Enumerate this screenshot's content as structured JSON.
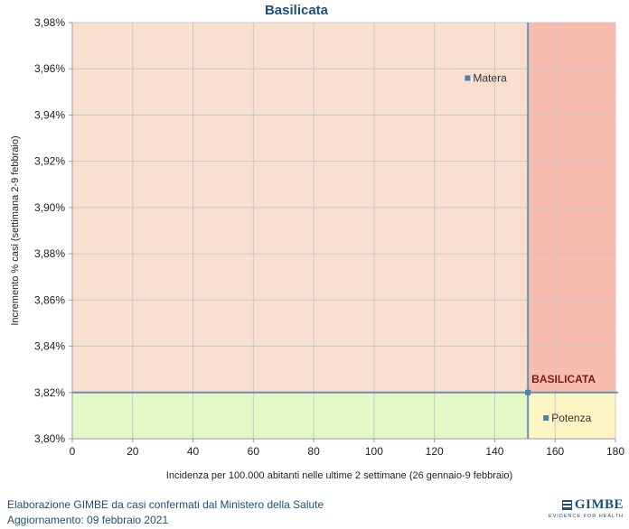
{
  "chart_data": {
    "type": "scatter",
    "title": "Basilicata",
    "xlabel": "Incidenza per 100.000 abitanti nelle ultime 2 settimane (26 gennaio-9 febbraio)",
    "ylabel": "Incremento % casi (settimana 2-9 febbraio)",
    "xlim": [
      0,
      180
    ],
    "ylim": [
      3.8,
      3.98
    ],
    "xticks": [
      0,
      20,
      40,
      60,
      80,
      100,
      120,
      140,
      160,
      180
    ],
    "xtick_labels": [
      "0",
      "20",
      "40",
      "60",
      "80",
      "100",
      "120",
      "140",
      "160",
      "180"
    ],
    "yticks": [
      3.8,
      3.82,
      3.84,
      3.86,
      3.88,
      3.9,
      3.92,
      3.94,
      3.96,
      3.98
    ],
    "ytick_labels": [
      "3,80%",
      "3,82%",
      "3,84%",
      "3,86%",
      "3,88%",
      "3,90%",
      "3,92%",
      "3,94%",
      "3,96%",
      "3,98%"
    ],
    "grid": true,
    "reference_point": {
      "label": "BASILICATA",
      "x": 151,
      "y": 3.82
    },
    "quadrant_colors": {
      "upper_left": "#f8dfce",
      "upper_right": "#f9bdb0",
      "lower_left": "#e4f7c7",
      "lower_right": "#fdf6c4"
    },
    "points": [
      {
        "label": "Matera",
        "x": 131,
        "y": 3.956
      },
      {
        "label": "Potenza",
        "x": 157,
        "y": 3.809
      }
    ],
    "colors": {
      "title": "#1f4e79",
      "marker": "#4f7fa8",
      "divider": "#6b8fb5",
      "reference_label": "#7a1e12"
    }
  },
  "footer": {
    "line1": "Elaborazione GIMBE da casi confermati dal Ministero della Salute",
    "line2": "Aggiornamento: 09 febbraio 2021"
  },
  "brand": {
    "name": "GIMBE",
    "tagline": "EVIDENCE FOR HEALTH",
    "icon": "gimbe-logo-icon"
  }
}
